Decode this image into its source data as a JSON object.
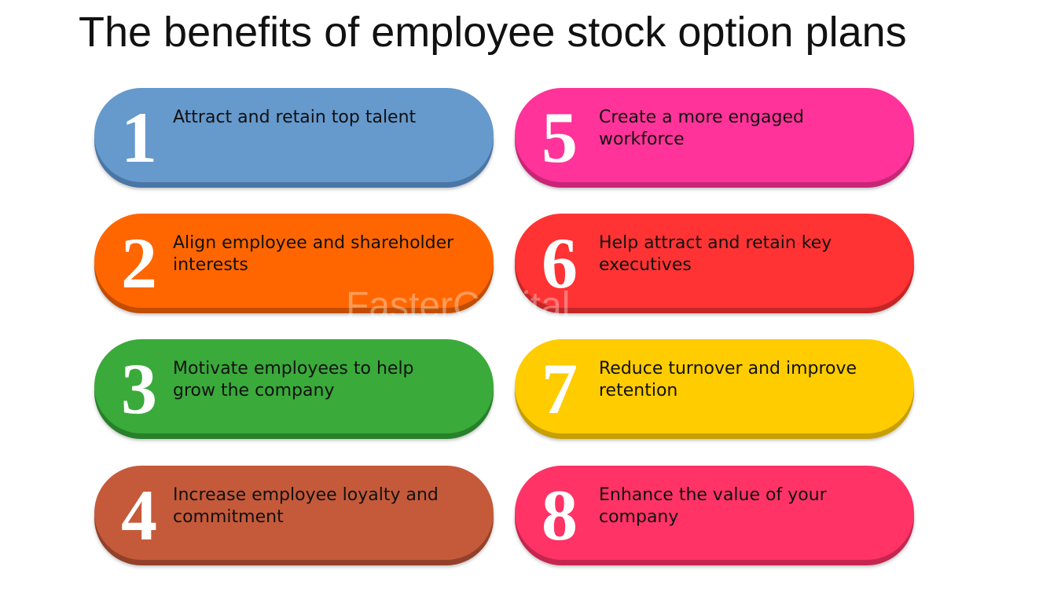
{
  "title": "The benefits of employee stock option plans",
  "watermark": "FasterCapital",
  "items": [
    {
      "number": "1",
      "lines": [
        "Attract and retain top talent"
      ],
      "color": "#6699cc",
      "edge": "#4a76a6"
    },
    {
      "number": "2",
      "lines": [
        "Align employee and shareholder",
        "interests"
      ],
      "color": "#ff6600",
      "edge": "#c24d00"
    },
    {
      "number": "3",
      "lines": [
        "Motivate employees to help",
        "grow the company"
      ],
      "color": "#3aaa3a",
      "edge": "#27802a"
    },
    {
      "number": "4",
      "lines": [
        "Increase employee loyalty and",
        "commitment"
      ],
      "color": "#c55a3a",
      "edge": "#93412a"
    },
    {
      "number": "5",
      "lines": [
        "Create a more engaged",
        "workforce"
      ],
      "color": "#ff3399",
      "edge": "#c72677"
    },
    {
      "number": "6",
      "lines": [
        "Help attract and retain key",
        "executives"
      ],
      "color": "#ff3333",
      "edge": "#c42626"
    },
    {
      "number": "7",
      "lines": [
        "Reduce turnover and improve",
        "retention"
      ],
      "color": "#ffcc00",
      "edge": "#c79f00"
    },
    {
      "number": "8",
      "lines": [
        "Enhance the value of your",
        "company"
      ],
      "color": "#ff3366",
      "edge": "#c5264f"
    }
  ]
}
